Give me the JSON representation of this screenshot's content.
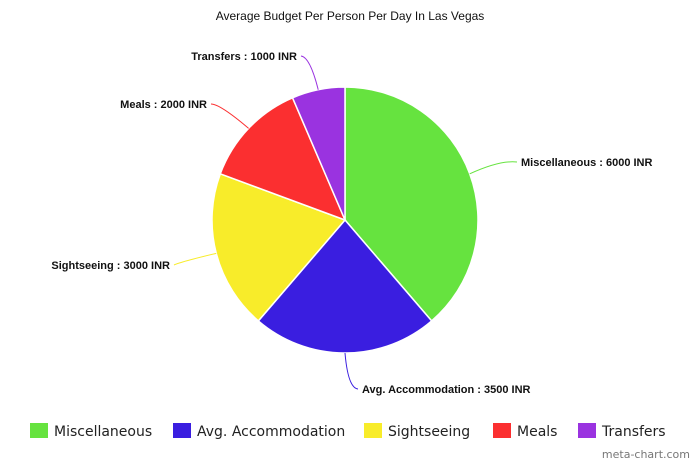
{
  "chart_data": {
    "type": "pie",
    "title": "Average Budget Per Person Per Day In Las Vegas",
    "categories": [
      "Miscellaneous",
      "Avg. Accommodation",
      "Sightseeing",
      "Meals",
      "Transfers"
    ],
    "values": [
      6000,
      3500,
      3000,
      2000,
      1000
    ],
    "unit": "INR",
    "slice_labels": [
      "Miscellaneous : 6000 INR",
      "Avg. Accommodation : 3500 INR",
      "Sightseeing : 3000 INR",
      "Meals : 2000 INR",
      "Transfers : 1000 INR"
    ],
    "colors": [
      "#66e33f",
      "#3a1ee0",
      "#f8ec2a",
      "#fb2f30",
      "#9a33e0"
    ],
    "start_angle_deg": 0,
    "direction": "clockwise",
    "legend_position": "bottom"
  },
  "watermark": "meta-chart.com"
}
